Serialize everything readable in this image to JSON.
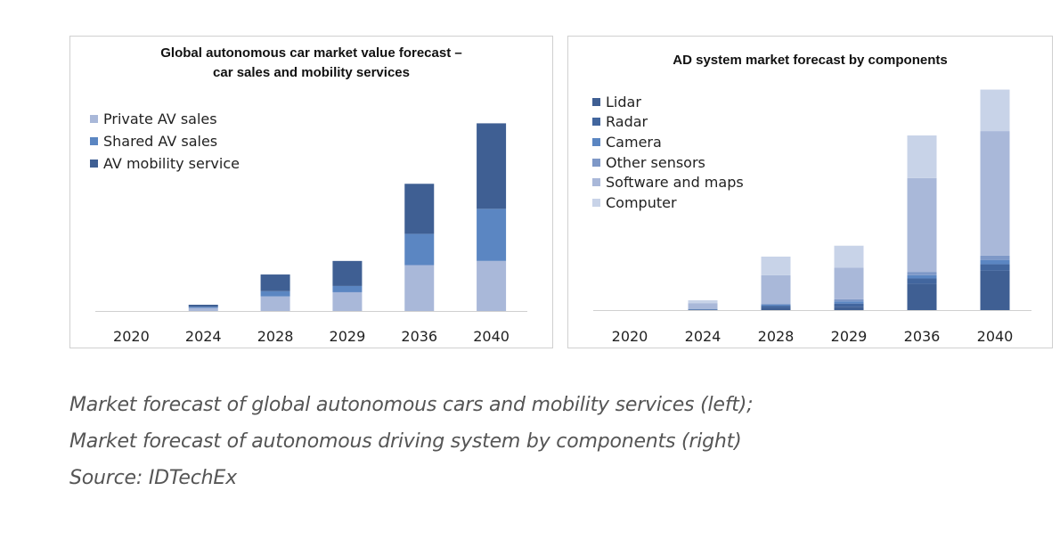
{
  "caption": {
    "line1": "Market forecast of global autonomous cars and mobility services (left);",
    "line2": "Market forecast of autonomous driving system by components (right)",
    "line3": "Source: IDTechEx"
  },
  "chart_data": [
    {
      "type": "bar",
      "stacked": true,
      "title_line1": "Global autonomous car market value forecast –",
      "title_line2": "car sales and mobility services",
      "categories": [
        "2020",
        "2024",
        "2028",
        "2029",
        "2036",
        "2040"
      ],
      "series": [
        {
          "name": "Private AV sales",
          "color": "#a9b8d9",
          "values": [
            0,
            1.5,
            7,
            9,
            22,
            24
          ]
        },
        {
          "name": "Shared AV sales",
          "color": "#5b86c2",
          "values": [
            0,
            0.5,
            2.5,
            3,
            15,
            25
          ]
        },
        {
          "name": "AV mobility service",
          "color": "#3f5f93",
          "values": [
            0,
            1,
            8,
            12,
            24,
            41
          ]
        }
      ],
      "ylim": [
        0,
        100
      ],
      "legend_position": "top-left",
      "grid": false
    },
    {
      "type": "bar",
      "stacked": true,
      "title_line1": "AD system market forecast by components",
      "title_line2": "",
      "categories": [
        "2020",
        "2024",
        "2028",
        "2029",
        "2036",
        "2040"
      ],
      "series": [
        {
          "name": "Lidar",
          "color": "#3f5f93",
          "values": [
            0,
            0,
            1,
            1.5,
            12,
            18
          ]
        },
        {
          "name": "Radar",
          "color": "#42669e",
          "values": [
            0,
            0.3,
            1,
            1.5,
            2.5,
            3
          ]
        },
        {
          "name": "Camera",
          "color": "#5b86c2",
          "values": [
            0,
            0.2,
            0.5,
            1,
            1.5,
            2
          ]
        },
        {
          "name": "Other sensors",
          "color": "#7e98c7",
          "values": [
            0,
            0.2,
            0.5,
            1,
            1.5,
            2
          ]
        },
        {
          "name": "Software and maps",
          "color": "#a9b8d9",
          "values": [
            0,
            2.5,
            13,
            14.5,
            43,
            57
          ]
        },
        {
          "name": "Computer",
          "color": "#c8d3e8",
          "values": [
            0,
            1.3,
            8.5,
            10,
            19.5,
            19
          ]
        }
      ],
      "ylim": [
        0,
        100
      ],
      "legend_position": "top-left",
      "grid": false
    }
  ]
}
